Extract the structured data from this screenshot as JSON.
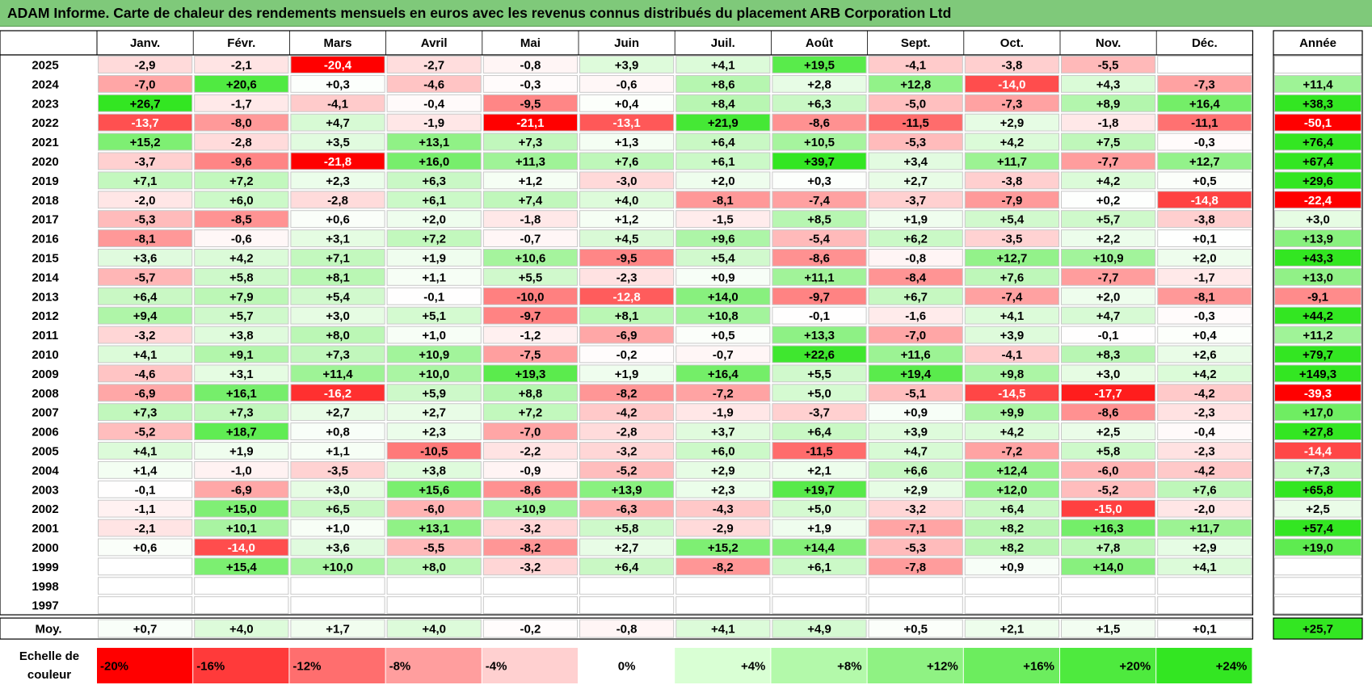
{
  "title": "ADAM Informe. Carte de chaleur des rendements mensuels en euros avec les revenus connus distribués du placement ARB Corporation Ltd",
  "chart_data": {
    "type": "heatmap",
    "months": [
      "Janv.",
      "Févr.",
      "Mars",
      "Avril",
      "Mai",
      "Juin",
      "Juil.",
      "Août",
      "Sept.",
      "Oct.",
      "Nov.",
      "Déc."
    ],
    "year_header": "Année",
    "rows": [
      {
        "label": "2025",
        "months": [
          "-2,9",
          "-2,1",
          "-20,4",
          "-2,7",
          "-0,8",
          "+3,9",
          "+4,1",
          "+19,5",
          "-4,1",
          "-3,8",
          "-5,5",
          ""
        ],
        "year": ""
      },
      {
        "label": "2024",
        "months": [
          "-7,0",
          "+20,6",
          "+0,3",
          "-4,6",
          "-0,3",
          "-0,6",
          "+8,6",
          "+2,8",
          "+12,8",
          "-14,0",
          "+4,3",
          "-7,3"
        ],
        "year": "+11,4"
      },
      {
        "label": "2023",
        "months": [
          "+26,7",
          "-1,7",
          "-4,1",
          "-0,4",
          "-9,5",
          "+0,4",
          "+8,4",
          "+6,3",
          "-5,0",
          "-7,3",
          "+8,9",
          "+16,4"
        ],
        "year": "+38,3"
      },
      {
        "label": "2022",
        "months": [
          "-13,7",
          "-8,0",
          "+4,7",
          "-1,9",
          "-21,1",
          "-13,1",
          "+21,9",
          "-8,6",
          "-11,5",
          "+2,9",
          "-1,8",
          "-11,1"
        ],
        "year": "-50,1"
      },
      {
        "label": "2021",
        "months": [
          "+15,2",
          "-2,8",
          "+3,5",
          "+13,1",
          "+7,3",
          "+1,3",
          "+6,4",
          "+10,5",
          "-5,3",
          "+4,2",
          "+7,5",
          "-0,3"
        ],
        "year": "+76,4"
      },
      {
        "label": "2020",
        "months": [
          "-3,7",
          "-9,6",
          "-21,8",
          "+16,0",
          "+11,3",
          "+7,6",
          "+6,1",
          "+39,7",
          "+3,4",
          "+11,7",
          "-7,7",
          "+12,7"
        ],
        "year": "+67,4"
      },
      {
        "label": "2019",
        "months": [
          "+7,1",
          "+7,2",
          "+2,3",
          "+6,3",
          "+1,2",
          "-3,0",
          "+2,0",
          "+0,3",
          "+2,7",
          "-3,8",
          "+4,2",
          "+0,5"
        ],
        "year": "+29,6"
      },
      {
        "label": "2018",
        "months": [
          "-2,0",
          "+6,0",
          "-2,8",
          "+6,1",
          "+7,4",
          "+4,0",
          "-8,1",
          "-7,4",
          "-3,7",
          "-7,9",
          "+0,2",
          "-14,8"
        ],
        "year": "-22,4"
      },
      {
        "label": "2017",
        "months": [
          "-5,3",
          "-8,5",
          "+0,6",
          "+2,0",
          "-1,8",
          "+1,2",
          "-1,5",
          "+8,5",
          "+1,9",
          "+5,4",
          "+5,7",
          "-3,8"
        ],
        "year": "+3,0"
      },
      {
        "label": "2016",
        "months": [
          "-8,1",
          "-0,6",
          "+3,1",
          "+7,2",
          "-0,7",
          "+4,5",
          "+9,6",
          "-5,4",
          "+6,2",
          "-3,5",
          "+2,2",
          "+0,1"
        ],
        "year": "+13,9"
      },
      {
        "label": "2015",
        "months": [
          "+3,6",
          "+4,2",
          "+7,1",
          "+1,9",
          "+10,6",
          "-9,5",
          "+5,4",
          "-8,6",
          "-0,8",
          "+12,7",
          "+10,9",
          "+2,0"
        ],
        "year": "+43,3"
      },
      {
        "label": "2014",
        "months": [
          "-5,7",
          "+5,8",
          "+8,1",
          "+1,1",
          "+5,5",
          "-2,3",
          "+0,9",
          "+11,1",
          "-8,4",
          "+7,6",
          "-7,7",
          "-1,7"
        ],
        "year": "+13,0"
      },
      {
        "label": "2013",
        "months": [
          "+6,4",
          "+7,9",
          "+5,4",
          "-0,1",
          "-10,0",
          "-12,8",
          "+14,0",
          "-9,7",
          "+6,7",
          "-7,4",
          "+2,0",
          "-8,1"
        ],
        "year": "-9,1"
      },
      {
        "label": "2012",
        "months": [
          "+9,4",
          "+5,7",
          "+3,0",
          "+5,1",
          "-9,7",
          "+8,1",
          "+10,8",
          "-0,1",
          "-1,6",
          "+4,1",
          "+4,7",
          "-0,3"
        ],
        "year": "+44,2"
      },
      {
        "label": "2011",
        "months": [
          "-3,2",
          "+3,8",
          "+8,0",
          "+1,0",
          "-1,2",
          "-6,9",
          "+0,5",
          "+13,3",
          "-7,0",
          "+3,9",
          "-0,1",
          "+0,4"
        ],
        "year": "+11,2"
      },
      {
        "label": "2010",
        "months": [
          "+4,1",
          "+9,1",
          "+7,3",
          "+10,9",
          "-7,5",
          "-0,2",
          "-0,7",
          "+22,6",
          "+11,6",
          "-4,1",
          "+8,3",
          "+2,6"
        ],
        "year": "+79,7"
      },
      {
        "label": "2009",
        "months": [
          "-4,6",
          "+3,1",
          "+11,4",
          "+10,0",
          "+19,3",
          "+1,9",
          "+16,4",
          "+5,5",
          "+19,4",
          "+9,8",
          "+3,0",
          "+4,2"
        ],
        "year": "+149,3"
      },
      {
        "label": "2008",
        "months": [
          "-6,9",
          "+16,1",
          "-16,2",
          "+5,9",
          "+8,8",
          "-8,2",
          "-7,2",
          "+5,0",
          "-5,1",
          "-14,5",
          "-17,7",
          "-4,2"
        ],
        "year": "-39,3"
      },
      {
        "label": "2007",
        "months": [
          "+7,3",
          "+7,3",
          "+2,7",
          "+2,7",
          "+7,2",
          "-4,2",
          "-1,9",
          "-3,7",
          "+0,9",
          "+9,9",
          "-8,6",
          "-2,3"
        ],
        "year": "+17,0"
      },
      {
        "label": "2006",
        "months": [
          "-5,2",
          "+18,7",
          "+0,8",
          "+2,3",
          "-7,0",
          "-2,8",
          "+3,7",
          "+6,4",
          "+3,9",
          "+4,2",
          "+2,5",
          "-0,4"
        ],
        "year": "+27,8"
      },
      {
        "label": "2005",
        "months": [
          "+4,1",
          "+1,9",
          "+1,1",
          "-10,5",
          "-2,2",
          "-3,2",
          "+6,0",
          "-11,5",
          "+4,7",
          "-7,2",
          "+5,8",
          "-2,3"
        ],
        "year": "-14,4"
      },
      {
        "label": "2004",
        "months": [
          "+1,4",
          "-1,0",
          "-3,5",
          "+3,8",
          "-0,9",
          "-5,2",
          "+2,9",
          "+2,1",
          "+6,6",
          "+12,4",
          "-6,0",
          "-4,2"
        ],
        "year": "+7,3"
      },
      {
        "label": "2003",
        "months": [
          "-0,1",
          "-6,9",
          "+3,0",
          "+15,6",
          "-8,6",
          "+13,9",
          "+2,3",
          "+19,7",
          "+2,9",
          "+12,0",
          "-5,2",
          "+7,6"
        ],
        "year": "+65,8"
      },
      {
        "label": "2002",
        "months": [
          "-1,1",
          "+15,0",
          "+6,5",
          "-6,0",
          "+10,9",
          "-6,3",
          "-4,3",
          "+5,0",
          "-3,2",
          "+6,4",
          "-15,0",
          "-2,0"
        ],
        "year": "+2,5"
      },
      {
        "label": "2001",
        "months": [
          "-2,1",
          "+10,1",
          "+1,0",
          "+13,1",
          "-3,2",
          "+5,8",
          "-2,9",
          "+1,9",
          "-7,1",
          "+8,2",
          "+16,3",
          "+11,7"
        ],
        "year": "+57,4"
      },
      {
        "label": "2000",
        "months": [
          "+0,6",
          "-14,0",
          "+3,6",
          "-5,5",
          "-8,2",
          "+2,7",
          "+15,2",
          "+14,4",
          "-5,3",
          "+8,2",
          "+7,8",
          "+2,9"
        ],
        "year": "+19,0"
      },
      {
        "label": "1999",
        "months": [
          "",
          "+15,4",
          "+10,0",
          "+8,0",
          "-3,2",
          "+6,4",
          "-8,2",
          "+6,1",
          "-7,8",
          "+0,9",
          "+14,0",
          "+4,1"
        ],
        "year": ""
      },
      {
        "label": "1998",
        "months": [
          "",
          "",
          "",
          "",
          "",
          "",
          "",
          "",
          "",
          "",
          "",
          ""
        ],
        "year": ""
      },
      {
        "label": "1997",
        "months": [
          "",
          "",
          "",
          "",
          "",
          "",
          "",
          "",
          "",
          "",
          "",
          ""
        ],
        "year": ""
      }
    ],
    "average_row": {
      "label": "Moy.",
      "months": [
        "+0,7",
        "+4,0",
        "+1,7",
        "+4,0",
        "-0,2",
        "-0,8",
        "+4,1",
        "+4,9",
        "+0,5",
        "+2,1",
        "+1,5",
        "+0,1"
      ],
      "year": "+25,7"
    },
    "color_scale": {
      "label_line1": "Echelle de",
      "label_line2": "couleur",
      "steps": [
        {
          "label": "-20%",
          "value": -20,
          "color": "#ff0000"
        },
        {
          "label": "-16%",
          "value": -16,
          "color": "#ff3a3a"
        },
        {
          "label": "-12%",
          "value": -12,
          "color": "#ff6e6e"
        },
        {
          "label": "-8%",
          "value": -8,
          "color": "#ff9e9e"
        },
        {
          "label": "-4%",
          "value": -4,
          "color": "#ffd0d0"
        },
        {
          "label": "0%",
          "value": 0,
          "color": "#ffffff"
        },
        {
          "label": "+4%",
          "value": 4,
          "color": "#d9ffd4"
        },
        {
          "label": "+8%",
          "value": 8,
          "color": "#b3f9aa"
        },
        {
          "label": "+12%",
          "value": 12,
          "color": "#8ff283"
        },
        {
          "label": "+16%",
          "value": 16,
          "color": "#6ced5e"
        },
        {
          "label": "+20%",
          "value": 20,
          "color": "#4eea3e"
        },
        {
          "label": "+24%",
          "value": 24,
          "color": "#33e622"
        }
      ]
    }
  }
}
